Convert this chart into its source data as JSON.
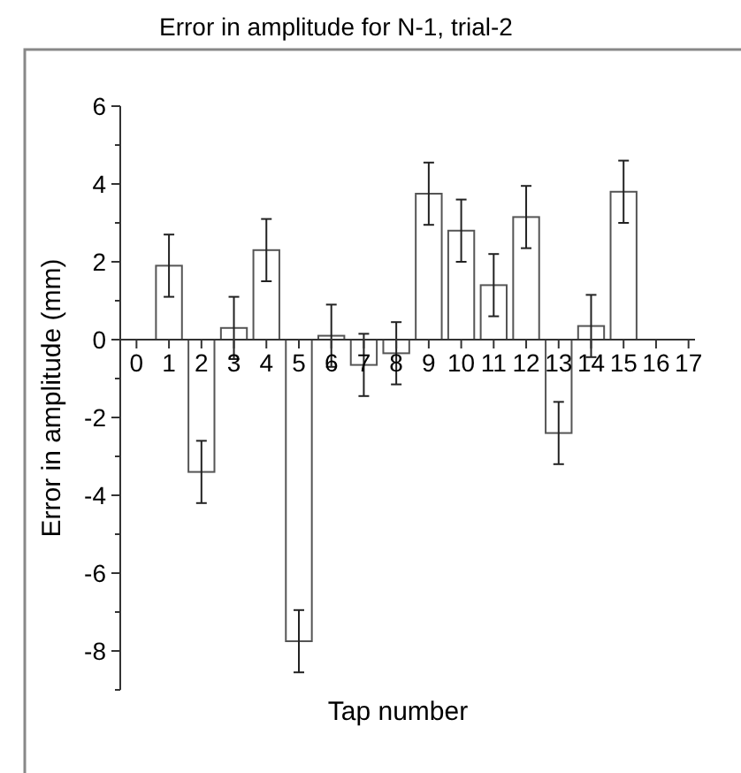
{
  "chart_data": {
    "type": "bar",
    "title": "Error in amplitude for N-1, trial-2",
    "xlabel": "Tap number",
    "ylabel": "Error in amplitude (mm)",
    "x": [
      1,
      2,
      3,
      4,
      5,
      6,
      7,
      8,
      9,
      10,
      11,
      12,
      13,
      14,
      15
    ],
    "values": [
      1.9,
      -3.4,
      0.3,
      2.3,
      -7.75,
      0.1,
      -0.65,
      -0.35,
      3.75,
      2.8,
      1.4,
      3.15,
      -2.4,
      0.35,
      3.8
    ],
    "errors": [
      0.8,
      0.8,
      0.8,
      0.8,
      0.8,
      0.8,
      0.8,
      0.8,
      0.8,
      0.8,
      0.8,
      0.8,
      0.8,
      0.8,
      0.8
    ],
    "color": "#ffffff",
    "xlim": [
      -0.5,
      17.2
    ],
    "xticks": [
      0,
      1,
      2,
      3,
      4,
      5,
      6,
      7,
      8,
      9,
      10,
      11,
      12,
      13,
      14,
      15,
      16,
      17
    ],
    "ylim": [
      -9,
      6
    ],
    "yticks": [
      {
        "value": -9,
        "label": null
      },
      -8,
      {
        "value": -7,
        "label": null
      },
      -6,
      {
        "value": -5,
        "label": null
      },
      -4,
      {
        "value": -3,
        "label": null
      },
      -2,
      {
        "value": -1,
        "label": null
      },
      0,
      {
        "value": 1,
        "label": null
      },
      2,
      {
        "value": 3,
        "label": null
      },
      4,
      {
        "value": 5,
        "label": null
      },
      6
    ],
    "grid": false
  }
}
